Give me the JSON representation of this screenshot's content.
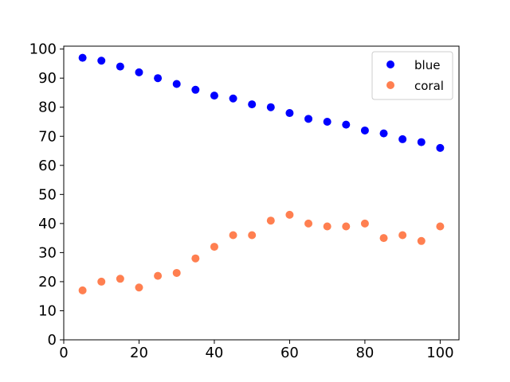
{
  "chart_data": {
    "type": "scatter",
    "title": "",
    "xlabel": "",
    "ylabel": "",
    "xlim": [
      0,
      105
    ],
    "ylim": [
      0,
      101
    ],
    "x_ticks": [
      0,
      20,
      40,
      60,
      80,
      100
    ],
    "y_ticks": [
      0,
      10,
      20,
      30,
      40,
      50,
      60,
      70,
      80,
      90,
      100
    ],
    "x_tick_labels": [
      "0",
      "20",
      "40",
      "60",
      "80",
      "100"
    ],
    "y_tick_labels": [
      "0",
      "10",
      "20",
      "30",
      "40",
      "50",
      "60",
      "70",
      "80",
      "90",
      "100"
    ],
    "grid": false,
    "legend_position": "top-right",
    "x": [
      5,
      10,
      15,
      20,
      25,
      30,
      35,
      40,
      45,
      50,
      55,
      60,
      65,
      70,
      75,
      80,
      85,
      90,
      95,
      100
    ],
    "series": [
      {
        "name": "blue",
        "color": "#0000ff",
        "values": [
          97,
          96,
          94,
          92,
          90,
          88,
          86,
          84,
          83,
          81,
          80,
          78,
          76,
          75,
          74,
          72,
          71,
          69,
          68,
          66
        ]
      },
      {
        "name": "coral",
        "color": "#ff7f50",
        "values": [
          17,
          20,
          21,
          18,
          22,
          23,
          28,
          32,
          36,
          36,
          41,
          43,
          40,
          39,
          39,
          40,
          35,
          36,
          34,
          39
        ]
      }
    ]
  }
}
